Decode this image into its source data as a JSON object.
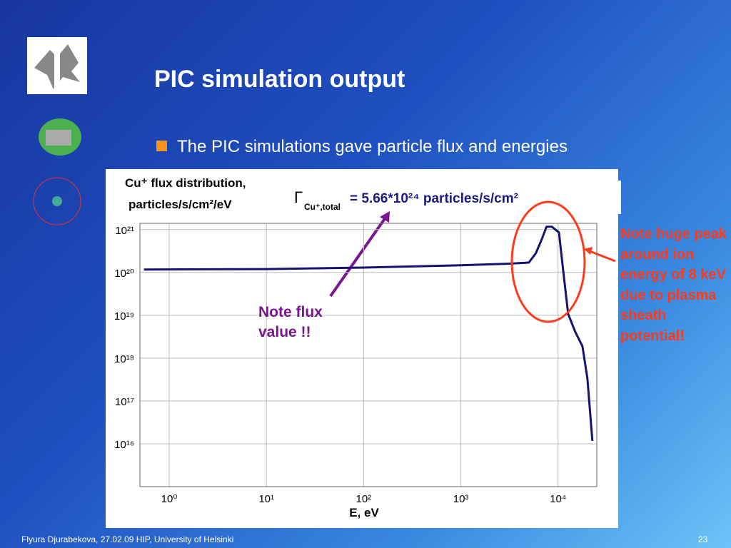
{
  "slide": {
    "title": "PIC simulation output",
    "bullet": "The PIC simulations gave particle flux and energies",
    "note_flux": "Note flux value !!",
    "note_peak": "Note huge peak around ion energy of 8 keV due to plasma sheath potential!",
    "footer": "Flyura Djurabekova, 27.02.09 HIP, University of Helsinki",
    "page_number": "23"
  },
  "chart_data": {
    "type": "line",
    "title_line1": "Cu⁺ flux distribution,",
    "title_line2": "particles/s/cm²/eV",
    "total_symbol": "Γ",
    "total_subscript": "Cu⁺,total",
    "total_text": "= 5.66*10²⁴ particles/s/cm²",
    "x_label": "E, eV",
    "log_x": true,
    "log_y": true,
    "grid": true,
    "color": "#141470",
    "x": [
      0.55,
      10,
      100,
      1000,
      3000,
      5000,
      5900,
      6800,
      7600,
      8600,
      10200,
      11300,
      12700,
      15000,
      17800,
      20000,
      21400,
      22500
    ],
    "values": [
      1.17e+20,
      1.2e+20,
      1.3e+20,
      1.47e+20,
      1.6e+20,
      1.7e+20,
      2.8e+20,
      6e+20,
      1.17e+21,
      1.17e+21,
      8.6e+20,
      1.08e+20,
      1.07e+19,
      4.1e+18,
      1.9e+18,
      3.4e+17,
      5e+16,
      1.17e+16
    ],
    "xlim": [
      0.5,
      25000
    ],
    "ylim": [
      1000000000000000.0,
      1.4e+21
    ],
    "xticks": [
      {
        "value": 1,
        "label": "10⁰"
      },
      {
        "value": 10,
        "label": "10¹"
      },
      {
        "value": 100,
        "label": "10²"
      },
      {
        "value": 1000,
        "label": "10³"
      },
      {
        "value": 10000,
        "label": "10⁴"
      }
    ],
    "yticks": [
      {
        "value": 1e+16,
        "label": "10¹⁶"
      },
      {
        "value": 1e+17,
        "label": "10¹⁷"
      },
      {
        "value": 1e+18,
        "label": "10¹⁸"
      },
      {
        "value": 1e+19,
        "label": "10¹⁹"
      },
      {
        "value": 1e+20,
        "label": "10²⁰"
      },
      {
        "value": 1e+21,
        "label": "10²¹"
      }
    ]
  }
}
